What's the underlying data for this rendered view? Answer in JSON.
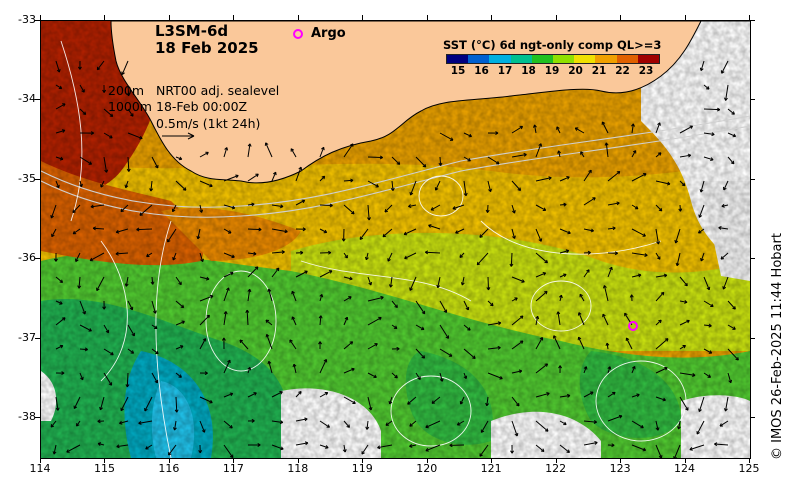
{
  "title": {
    "line1": "L3SM-6d",
    "line2": "18 Feb 2025"
  },
  "argo": {
    "label": "Argo",
    "color": "#ff00ff",
    "floats": [
      {
        "lon": 118.0,
        "lat": -33.2
      },
      {
        "lon": 123.2,
        "lat": -36.85
      }
    ]
  },
  "colorbar": {
    "title": "SST (°C) 6d ngt-only comp QL>=3",
    "ticks": [
      "15",
      "16",
      "17",
      "18",
      "19",
      "20",
      "21",
      "22",
      "23"
    ],
    "colors": [
      "#000080",
      "#0060d0",
      "#00b0e0",
      "#00c090",
      "#20c020",
      "#90e000",
      "#f0e000",
      "#f0a000",
      "#e06000",
      "#a00000"
    ]
  },
  "legend": {
    "contour_200": "200m",
    "contour_1000": "1000m",
    "product": "NRT00 adj. sealevel",
    "time": "18-Feb 00:00Z",
    "scale": "0.5m/s (1kt 24h)"
  },
  "axes": {
    "lon_ticks": [
      "114",
      "115",
      "116",
      "117",
      "118",
      "119",
      "120",
      "121",
      "122",
      "123",
      "124",
      "125"
    ],
    "lat_ticks": [
      "-33",
      "-34",
      "-35",
      "-36",
      "-37",
      "-38"
    ],
    "lon_range": [
      114,
      125
    ],
    "lat_range": [
      -38.5,
      -33
    ]
  },
  "credit": "© IMOS 26-Feb-2025 11:44 Hobart",
  "colors": {
    "land": "#fac89a",
    "coast": "#000000"
  }
}
